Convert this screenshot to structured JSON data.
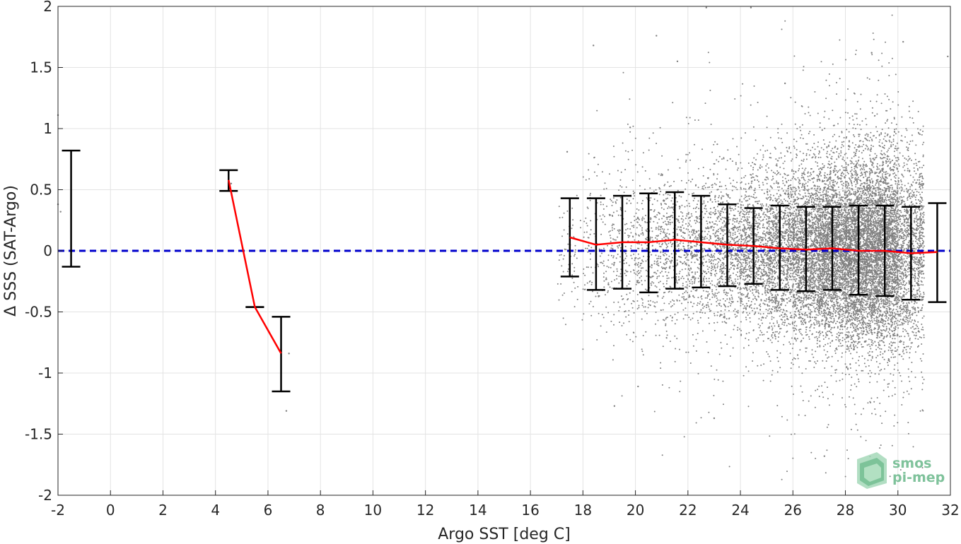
{
  "chart_data": {
    "type": "scatter",
    "title": "",
    "xlabel": "Argo SST [deg C]",
    "ylabel": "Δ SSS (SAT-Argo)",
    "xlim": [
      -2,
      32
    ],
    "ylim": [
      -2,
      2
    ],
    "x_ticks": [
      -2,
      0,
      2,
      4,
      6,
      8,
      10,
      12,
      14,
      16,
      18,
      20,
      22,
      24,
      26,
      28,
      30,
      32
    ],
    "y_ticks": [
      -2,
      -1.5,
      -1,
      -0.5,
      0,
      0.5,
      1,
      1.5,
      2
    ],
    "y_tick_labels": [
      "-2",
      "-1.5",
      "-1",
      "-0.5",
      "0",
      "0.5",
      "1",
      "1.5",
      "2"
    ],
    "grid": true,
    "reference_line": {
      "y": 0,
      "style": "dashed",
      "color": "#0000cc"
    },
    "scatter_color": "#808080",
    "mean_line_color": "#ff0000",
    "errorbar_color": "#000000",
    "mean_line": [
      {
        "x": 4.5,
        "y": 0.58
      },
      {
        "x": 5.5,
        "y": -0.46
      },
      {
        "x": 6.5,
        "y": -0.84
      }
    ],
    "mean_line_warm": [
      {
        "x": 17.5,
        "y": 0.11
      },
      {
        "x": 18.5,
        "y": 0.05
      },
      {
        "x": 19.5,
        "y": 0.07
      },
      {
        "x": 20.5,
        "y": 0.07
      },
      {
        "x": 21.5,
        "y": 0.09
      },
      {
        "x": 22.5,
        "y": 0.07
      },
      {
        "x": 23.5,
        "y": 0.05
      },
      {
        "x": 24.5,
        "y": 0.04
      },
      {
        "x": 25.5,
        "y": 0.02
      },
      {
        "x": 26.5,
        "y": 0.01
      },
      {
        "x": 27.5,
        "y": 0.02
      },
      {
        "x": 28.5,
        "y": 0.0
      },
      {
        "x": 29.5,
        "y": 0.0
      },
      {
        "x": 30.5,
        "y": -0.02
      },
      {
        "x": 31.5,
        "y": -0.01
      }
    ],
    "error_bars": [
      {
        "x": -1.5,
        "low": -0.13,
        "high": 0.82
      },
      {
        "x": 4.5,
        "low": 0.49,
        "high": 0.66
      },
      {
        "x": 5.5,
        "low": -0.46,
        "high": -0.46
      },
      {
        "x": 6.5,
        "low": -1.15,
        "high": -0.54
      },
      {
        "x": 17.5,
        "low": -0.21,
        "high": 0.43
      },
      {
        "x": 18.5,
        "low": -0.32,
        "high": 0.43
      },
      {
        "x": 19.5,
        "low": -0.31,
        "high": 0.45
      },
      {
        "x": 20.5,
        "low": -0.34,
        "high": 0.47
      },
      {
        "x": 21.5,
        "low": -0.31,
        "high": 0.48
      },
      {
        "x": 22.5,
        "low": -0.3,
        "high": 0.45
      },
      {
        "x": 23.5,
        "low": -0.29,
        "high": 0.38
      },
      {
        "x": 24.5,
        "low": -0.27,
        "high": 0.35
      },
      {
        "x": 25.5,
        "low": -0.32,
        "high": 0.37
      },
      {
        "x": 26.5,
        "low": -0.33,
        "high": 0.36
      },
      {
        "x": 27.5,
        "low": -0.32,
        "high": 0.36
      },
      {
        "x": 28.5,
        "low": -0.36,
        "high": 0.37
      },
      {
        "x": 29.5,
        "low": -0.37,
        "high": 0.37
      },
      {
        "x": 30.5,
        "low": -0.4,
        "high": 0.36
      },
      {
        "x": 31.5,
        "low": -0.42,
        "high": 0.39
      }
    ],
    "scatter_sample": [
      {
        "x": -2.0,
        "y": 1.11
      },
      {
        "x": -2.0,
        "y": 0.38
      },
      {
        "x": -1.9,
        "y": 0.32
      },
      {
        "x": 4.6,
        "y": 0.55
      },
      {
        "x": 6.7,
        "y": -1.31
      },
      {
        "x": 6.8,
        "y": -0.84
      },
      {
        "x": 17.4,
        "y": 0.81
      },
      {
        "x": 18.4,
        "y": 1.68
      },
      {
        "x": 19.2,
        "y": -1.27
      },
      {
        "x": 19.8,
        "y": 1.01
      },
      {
        "x": 20.1,
        "y": -1.11
      },
      {
        "x": 20.8,
        "y": 1.76
      },
      {
        "x": 21.6,
        "y": 1.55
      },
      {
        "x": 22.7,
        "y": 1.99
      },
      {
        "x": 23.0,
        "y": -1.37
      },
      {
        "x": 24.4,
        "y": 1.99
      },
      {
        "x": 25.7,
        "y": 1.37
      },
      {
        "x": 27.2,
        "y": -1.68
      },
      {
        "x": 29.0,
        "y": 1.62
      },
      {
        "x": 30.2,
        "y": 1.71
      },
      {
        "x": 31.9,
        "y": 1.59
      }
    ],
    "scatter_bins": [
      {
        "x": 17.5,
        "count": 60,
        "spread": 0.25
      },
      {
        "x": 18.5,
        "count": 140,
        "spread": 0.3
      },
      {
        "x": 19.5,
        "count": 220,
        "spread": 0.32
      },
      {
        "x": 20.5,
        "count": 300,
        "spread": 0.33
      },
      {
        "x": 21.5,
        "count": 380,
        "spread": 0.33
      },
      {
        "x": 22.5,
        "count": 480,
        "spread": 0.32
      },
      {
        "x": 23.5,
        "count": 650,
        "spread": 0.3
      },
      {
        "x": 24.5,
        "count": 850,
        "spread": 0.3
      },
      {
        "x": 25.5,
        "count": 1200,
        "spread": 0.33
      },
      {
        "x": 26.5,
        "count": 1700,
        "spread": 0.34
      },
      {
        "x": 27.5,
        "count": 2300,
        "spread": 0.34
      },
      {
        "x": 28.5,
        "count": 2800,
        "spread": 0.37
      },
      {
        "x": 29.5,
        "count": 2600,
        "spread": 0.38
      },
      {
        "x": 30.5,
        "count": 1200,
        "spread": 0.39
      }
    ]
  },
  "logo": {
    "line1": "smos",
    "line2": "pi-mep",
    "color": "#7fc29b"
  }
}
